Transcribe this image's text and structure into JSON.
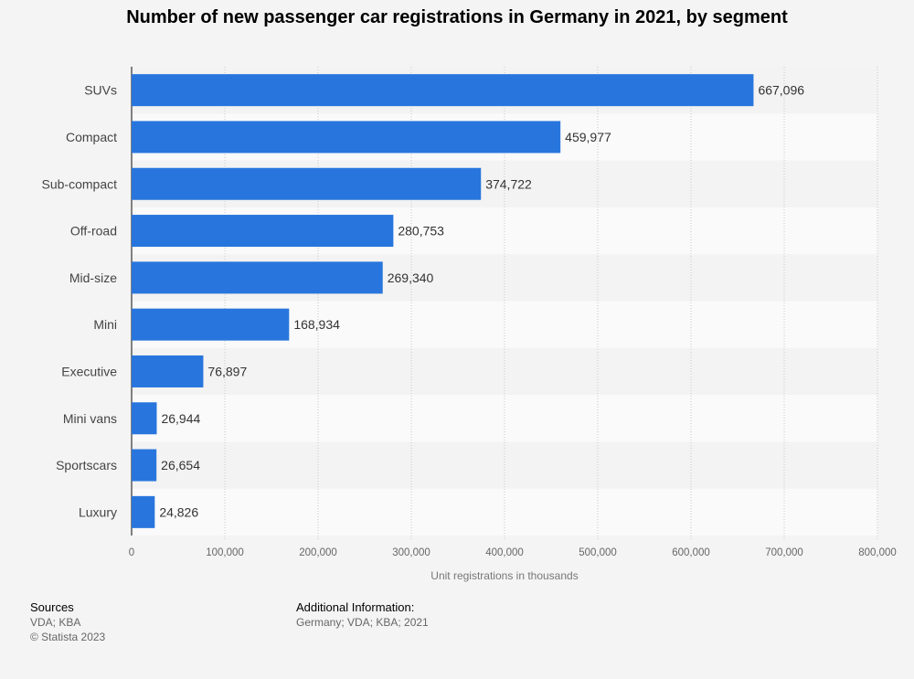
{
  "title": "Number of new passenger car registrations in Germany in 2021, by segment",
  "chart_data": {
    "type": "bar",
    "orientation": "horizontal",
    "categories": [
      "SUVs",
      "Compact",
      "Sub-compact",
      "Off-road",
      "Mid-size",
      "Mini",
      "Executive",
      "Mini vans",
      "Sportscars",
      "Luxury"
    ],
    "values": [
      667096,
      459977,
      374722,
      280753,
      269340,
      168934,
      76897,
      26944,
      26654,
      24826
    ],
    "value_labels": [
      "667,096",
      "459,977",
      "374,722",
      "280,753",
      "269,340",
      "168,934",
      "76,897",
      "26,944",
      "26,654",
      "24,826"
    ],
    "xlabel": "Unit registrations in thousands",
    "ylabel": "",
    "xlim": [
      0,
      800000
    ],
    "xticks": [
      0,
      100000,
      200000,
      300000,
      400000,
      500000,
      600000,
      700000,
      800000
    ],
    "xtick_labels": [
      "0",
      "100,000",
      "200,000",
      "300,000",
      "400,000",
      "500,000",
      "600,000",
      "700,000",
      "800,000"
    ],
    "grid": "vertical dotted",
    "bar_color": "#2876dd",
    "band_colors": [
      "#f3f3f3",
      "#fafafa"
    ]
  },
  "footer": {
    "sources_label": "Sources",
    "sources_lines": [
      "VDA; KBA",
      "© Statista 2023"
    ],
    "additional_label": "Additional Information:",
    "additional_text": "Germany; VDA; KBA; 2021"
  }
}
